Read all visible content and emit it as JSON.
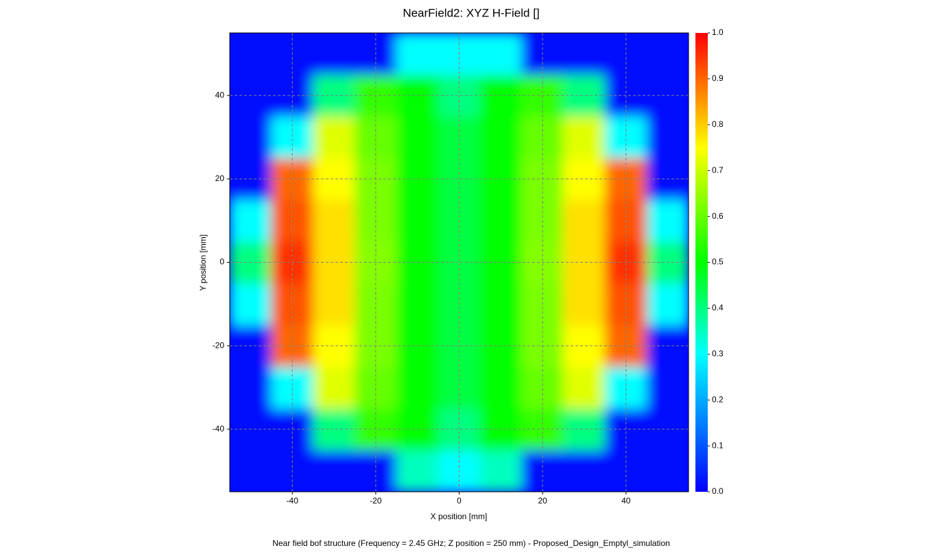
{
  "chart_data": {
    "type": "heatmap",
    "title": "NearField2: XYZ H-Field []",
    "x_label": "X position [mm]",
    "y_label": "Y position [mm]",
    "caption": "Near field bof structure (Frequency = 2.45 GHz; Z position = 250 mm) - Proposed_Design_Emptyl_simulation",
    "xlim": [
      -55,
      55
    ],
    "ylim": [
      -55,
      55
    ],
    "xticks": [
      -40,
      -20,
      0,
      20,
      40
    ],
    "yticks": [
      -40,
      -20,
      0,
      20,
      40
    ],
    "grid": true,
    "x": [
      -50,
      -40,
      -30,
      -20,
      -10,
      0,
      10,
      20,
      30,
      40,
      50
    ],
    "y": [
      -50,
      -40,
      -30,
      -20,
      -10,
      0,
      10,
      20,
      30,
      40,
      50
    ],
    "z": [
      [
        0.02,
        0.02,
        0.02,
        0.02,
        0.35,
        0.3,
        0.35,
        0.02,
        0.02,
        0.02,
        0.02
      ],
      [
        0.02,
        0.02,
        0.4,
        0.55,
        0.5,
        0.4,
        0.5,
        0.55,
        0.4,
        0.02,
        0.02
      ],
      [
        0.02,
        0.3,
        0.72,
        0.6,
        0.5,
        0.45,
        0.5,
        0.6,
        0.72,
        0.3,
        0.02
      ],
      [
        0.02,
        0.9,
        0.75,
        0.62,
        0.5,
        0.45,
        0.5,
        0.62,
        0.75,
        0.9,
        0.02
      ],
      [
        0.3,
        0.92,
        0.78,
        0.62,
        0.5,
        0.45,
        0.5,
        0.62,
        0.78,
        0.92,
        0.3
      ],
      [
        0.4,
        0.95,
        0.78,
        0.63,
        0.5,
        0.45,
        0.5,
        0.63,
        0.78,
        0.95,
        0.4
      ],
      [
        0.3,
        0.92,
        0.78,
        0.62,
        0.5,
        0.45,
        0.5,
        0.62,
        0.78,
        0.92,
        0.3
      ],
      [
        0.02,
        0.9,
        0.75,
        0.62,
        0.5,
        0.45,
        0.5,
        0.62,
        0.75,
        0.9,
        0.02
      ],
      [
        0.02,
        0.3,
        0.72,
        0.6,
        0.5,
        0.45,
        0.5,
        0.6,
        0.72,
        0.3,
        0.02
      ],
      [
        0.02,
        0.02,
        0.4,
        0.55,
        0.5,
        0.4,
        0.5,
        0.55,
        0.4,
        0.02,
        0.02
      ],
      [
        0.02,
        0.02,
        0.02,
        0.02,
        0.3,
        0.3,
        0.3,
        0.02,
        0.02,
        0.02,
        0.02
      ]
    ],
    "zlim": [
      0,
      1
    ],
    "zticks": [
      {
        "value": 0,
        "label": "0.0"
      },
      0.1,
      0.2,
      0.3,
      0.4,
      0.5,
      0.6,
      0.7,
      0.8,
      0.9,
      {
        "value": 1,
        "label": "1.0"
      }
    ],
    "colorscale": [
      [
        0,
        "#0000ff"
      ],
      [
        0.3,
        "#00ffff"
      ],
      [
        0.5,
        "#00ff00"
      ],
      [
        0.75,
        "#ffff00"
      ],
      [
        1,
        "#ff0000"
      ]
    ]
  }
}
